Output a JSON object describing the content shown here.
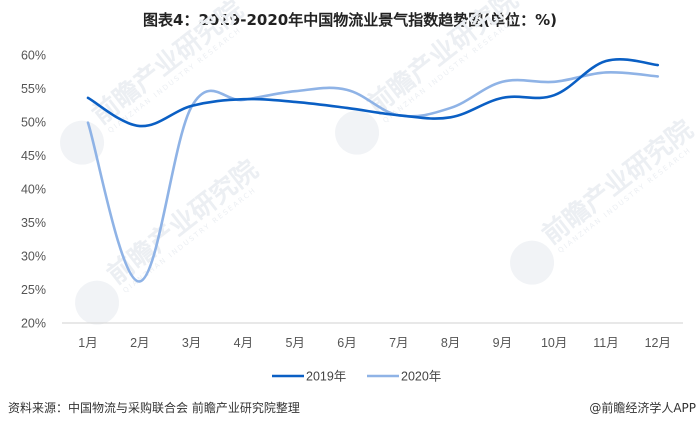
{
  "title": "图表4：2019-2020年中国物流业景气指数趋势图(单位：%)",
  "footer": {
    "source": "资料来源：中国物流与采购联合会 前瞻产业研究院整理",
    "credit": "@前瞻经济学人APP"
  },
  "watermark": {
    "text": "前瞻产业研究院",
    "subtext": "QIANZHAN INDUSTRY RESEARCH"
  },
  "colors": {
    "series_2019": "#0a5fc4",
    "series_2020": "#8fb3e6",
    "axis": "#d9d9d9",
    "tick_text": "#555555"
  },
  "chart_data": {
    "type": "line",
    "title": "图表4：2019-2020年中国物流业景气指数趋势图(单位：%)",
    "xlabel": "",
    "ylabel": "",
    "categories": [
      "1月",
      "2月",
      "3月",
      "4月",
      "5月",
      "6月",
      "7月",
      "8月",
      "9月",
      "10月",
      "11月",
      "12月"
    ],
    "series": [
      {
        "name": "2019年",
        "color": "#0a5fc4",
        "values": [
          53.6,
          49.4,
          52.4,
          53.4,
          53.0,
          52.1,
          51.0,
          50.7,
          53.6,
          54.0,
          59.1,
          58.5
        ]
      },
      {
        "name": "2020年",
        "color": "#8fb3e6",
        "values": [
          49.9,
          26.2,
          52.3,
          53.3,
          54.6,
          54.8,
          51.0,
          52.1,
          56.0,
          56.0,
          57.4,
          56.8
        ]
      }
    ],
    "ylim": [
      20,
      60
    ],
    "yticks": [
      "20%",
      "25%",
      "30%",
      "35%",
      "40%",
      "45%",
      "50%",
      "55%",
      "60%"
    ],
    "ytick_values": [
      20,
      25,
      30,
      35,
      40,
      45,
      50,
      55,
      60
    ],
    "grid": false,
    "legend_position": "bottom",
    "smooth": true
  }
}
